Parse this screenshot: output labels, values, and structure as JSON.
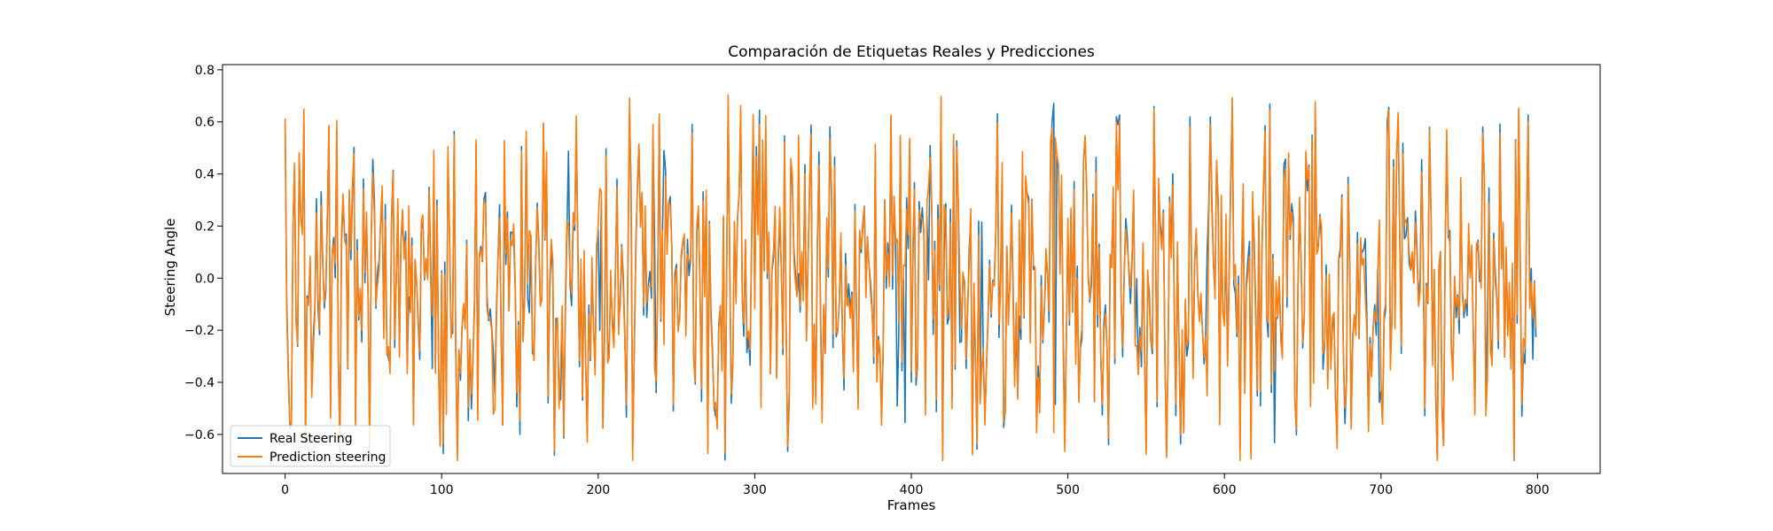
{
  "chart_data": {
    "type": "line",
    "title": "Comparación de Etiquetas Reales y Predicciones",
    "xlabel": "Frames",
    "ylabel": "Steering Angle",
    "xlim": [
      -40,
      840
    ],
    "ylim": [
      -0.75,
      0.82
    ],
    "xticks": [
      0,
      100,
      200,
      300,
      400,
      500,
      600,
      700,
      800
    ],
    "yticks": [
      -0.6,
      -0.4,
      -0.2,
      0.0,
      0.2,
      0.4,
      0.6,
      0.8
    ],
    "ytick_labels": [
      "−0.6",
      "−0.4",
      "−0.2",
      "0.0",
      "0.2",
      "0.4",
      "0.6",
      "0.8"
    ],
    "legend_position": "lower-left",
    "grid": false,
    "frames": 800,
    "series": [
      {
        "name": "Real Steering",
        "color": "#1f77b4"
      },
      {
        "name": "Prediction steering",
        "color": "#ff7f0e"
      }
    ]
  }
}
